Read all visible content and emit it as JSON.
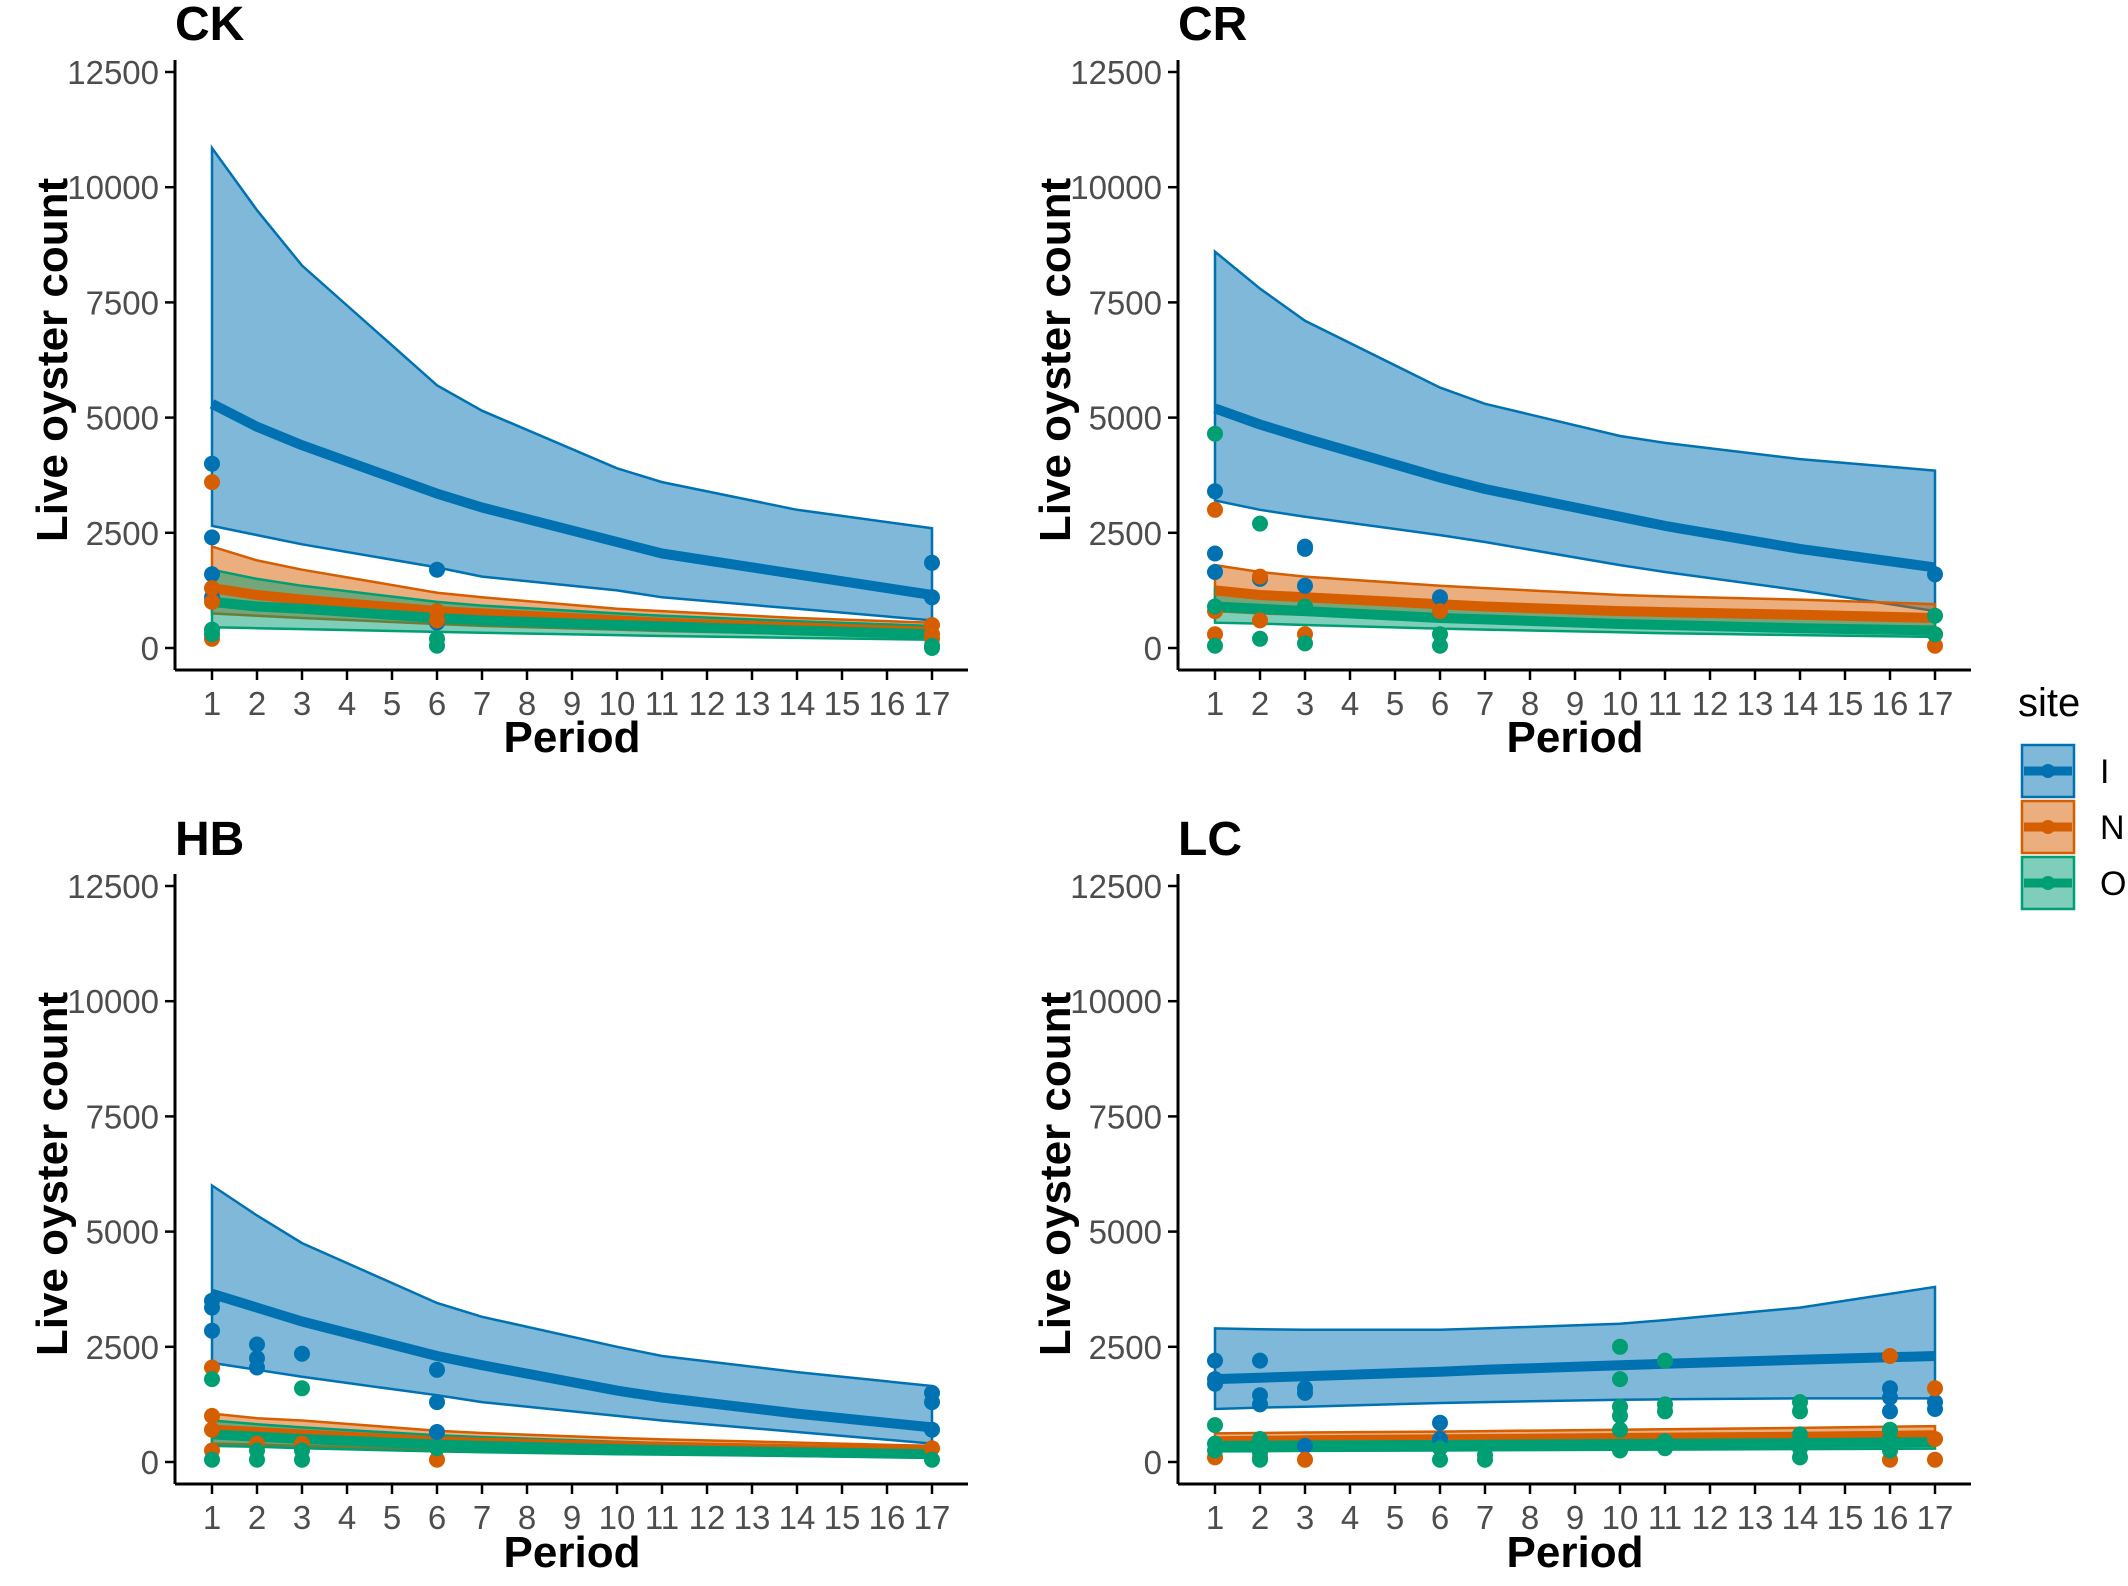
{
  "colors": {
    "I": "#0072B2",
    "N": "#D55E00",
    "O": "#009E73"
  },
  "legend": {
    "title": "site",
    "items": [
      "I",
      "N",
      "O"
    ]
  },
  "chart_data": [
    {
      "type": "line",
      "title": "CK",
      "xlabel": "Period",
      "ylabel": "Live oyster count",
      "x_ticks": [
        "1",
        "2",
        "3",
        "4",
        "5",
        "6",
        "7",
        "8",
        "9",
        "10",
        "11",
        "12",
        "13",
        "14",
        "15",
        "16",
        "17"
      ],
      "y_ticks": [
        "0",
        "2500",
        "5000",
        "7500",
        "10000",
        "12500"
      ],
      "xlim": [
        1,
        17
      ],
      "ylim": [
        0,
        12500
      ],
      "fit_x": [
        1,
        2,
        3,
        6,
        7,
        10,
        11,
        14,
        17
      ],
      "series": [
        {
          "name": "I",
          "fit": [
            5300,
            4800,
            4400,
            3350,
            3050,
            2300,
            2050,
            1600,
            1150
          ],
          "lower": [
            2650,
            2450,
            2250,
            1750,
            1550,
            1250,
            1100,
            850,
            600
          ],
          "upper": [
            10850,
            9500,
            8300,
            5700,
            5150,
            3900,
            3600,
            3000,
            2600
          ],
          "points": [
            [
              1,
              4000
            ],
            [
              1,
              2400
            ],
            [
              1,
              1600
            ],
            [
              1,
              1100
            ],
            [
              6,
              1700
            ],
            [
              6,
              550
            ],
            [
              17,
              1850
            ],
            [
              17,
              1100
            ]
          ]
        },
        {
          "name": "N",
          "fit": [
            1300,
            1150,
            1050,
            800,
            750,
            600,
            550,
            450,
            350
          ],
          "lower": [
            750,
            700,
            650,
            520,
            480,
            400,
            370,
            310,
            250
          ],
          "upper": [
            2200,
            1900,
            1700,
            1200,
            1100,
            850,
            800,
            650,
            550
          ],
          "points": [
            [
              1,
              3600
            ],
            [
              1,
              1300
            ],
            [
              1,
              1000
            ],
            [
              1,
              200
            ],
            [
              6,
              800
            ],
            [
              6,
              600
            ],
            [
              17,
              500
            ],
            [
              17,
              300
            ],
            [
              17,
              200
            ]
          ]
        },
        {
          "name": "O",
          "fit": [
            1000,
            900,
            850,
            650,
            600,
            500,
            470,
            380,
            300
          ],
          "lower": [
            450,
            430,
            410,
            350,
            330,
            280,
            260,
            220,
            180
          ],
          "upper": [
            1700,
            1500,
            1350,
            1000,
            920,
            750,
            700,
            580,
            480
          ],
          "points": [
            [
              1,
              400
            ],
            [
              1,
              300
            ],
            [
              6,
              200
            ],
            [
              6,
              50
            ],
            [
              17,
              50
            ],
            [
              17,
              0
            ]
          ]
        }
      ]
    },
    {
      "type": "line",
      "title": "CR",
      "xlabel": "Period",
      "ylabel": "Live oyster count",
      "x_ticks": [
        "1",
        "2",
        "3",
        "4",
        "5",
        "6",
        "7",
        "8",
        "9",
        "10",
        "11",
        "12",
        "13",
        "14",
        "15",
        "16",
        "17"
      ],
      "y_ticks": [
        "0",
        "2500",
        "5000",
        "7500",
        "10000",
        "12500"
      ],
      "xlim": [
        1,
        17
      ],
      "ylim": [
        0,
        12500
      ],
      "fit_x": [
        1,
        2,
        3,
        6,
        7,
        10,
        11,
        14,
        17
      ],
      "series": [
        {
          "name": "I",
          "fit": [
            5200,
            4850,
            4550,
            3700,
            3450,
            2850,
            2650,
            2150,
            1750
          ],
          "lower": [
            3200,
            3000,
            2850,
            2450,
            2300,
            1800,
            1650,
            1250,
            800
          ],
          "upper": [
            8600,
            7800,
            7100,
            5650,
            5300,
            4600,
            4450,
            4100,
            3850
          ],
          "points": [
            [
              1,
              3400
            ],
            [
              1,
              2050
            ],
            [
              1,
              1650
            ],
            [
              2,
              1500
            ],
            [
              3,
              2200
            ],
            [
              3,
              2150
            ],
            [
              3,
              1350
            ],
            [
              6,
              1100
            ],
            [
              17,
              1600
            ]
          ]
        },
        {
          "name": "N",
          "fit": [
            1250,
            1150,
            1100,
            950,
            900,
            800,
            780,
            720,
            650
          ],
          "lower": [
            800,
            750,
            720,
            650,
            620,
            560,
            540,
            500,
            450
          ],
          "upper": [
            1800,
            1650,
            1550,
            1350,
            1300,
            1150,
            1120,
            1050,
            950
          ],
          "points": [
            [
              1,
              3000
            ],
            [
              1,
              800
            ],
            [
              1,
              300
            ],
            [
              2,
              1550
            ],
            [
              2,
              600
            ],
            [
              3,
              300
            ],
            [
              6,
              800
            ],
            [
              17,
              300
            ],
            [
              17,
              50
            ]
          ]
        },
        {
          "name": "O",
          "fit": [
            900,
            850,
            800,
            650,
            620,
            520,
            500,
            430,
            380
          ],
          "lower": [
            550,
            530,
            500,
            420,
            400,
            340,
            320,
            280,
            240
          ],
          "upper": [
            1300,
            1200,
            1150,
            950,
            900,
            780,
            750,
            650,
            580
          ],
          "points": [
            [
              1,
              4650
            ],
            [
              1,
              900
            ],
            [
              1,
              50
            ],
            [
              2,
              2700
            ],
            [
              2,
              200
            ],
            [
              3,
              900
            ],
            [
              3,
              100
            ],
            [
              6,
              300
            ],
            [
              6,
              50
            ],
            [
              17,
              700
            ],
            [
              17,
              300
            ]
          ]
        }
      ]
    },
    {
      "type": "line",
      "title": "HB",
      "xlabel": "Period",
      "ylabel": "Live oyster count",
      "x_ticks": [
        "1",
        "2",
        "3",
        "4",
        "5",
        "6",
        "7",
        "8",
        "9",
        "10",
        "11",
        "12",
        "13",
        "14",
        "15",
        "16",
        "17"
      ],
      "y_ticks": [
        "0",
        "2500",
        "5000",
        "7500",
        "10000",
        "12500"
      ],
      "xlim": [
        1,
        17
      ],
      "ylim": [
        0,
        12500
      ],
      "fit_x": [
        1,
        2,
        3,
        6,
        7,
        10,
        11,
        14,
        17
      ],
      "series": [
        {
          "name": "I",
          "fit": [
            3650,
            3350,
            3050,
            2300,
            2100,
            1550,
            1400,
            1050,
            750
          ],
          "lower": [
            2150,
            2000,
            1850,
            1450,
            1300,
            1000,
            900,
            650,
            400
          ],
          "upper": [
            6000,
            5350,
            4750,
            3450,
            3150,
            2500,
            2300,
            1950,
            1650
          ],
          "points": [
            [
              1,
              3500
            ],
            [
              1,
              3350
            ],
            [
              1,
              2850
            ],
            [
              2,
              2550
            ],
            [
              2,
              2250
            ],
            [
              2,
              2050
            ],
            [
              3,
              2350
            ],
            [
              6,
              2000
            ],
            [
              6,
              1300
            ],
            [
              6,
              650
            ],
            [
              17,
              1500
            ],
            [
              17,
              1300
            ],
            [
              17,
              700
            ]
          ]
        },
        {
          "name": "N",
          "fit": [
            700,
            650,
            600,
            450,
            420,
            350,
            330,
            280,
            230
          ],
          "lower": [
            400,
            380,
            350,
            270,
            250,
            210,
            200,
            170,
            140
          ],
          "upper": [
            1050,
            950,
            900,
            680,
            630,
            520,
            490,
            420,
            350
          ],
          "points": [
            [
              1,
              2050
            ],
            [
              1,
              1000
            ],
            [
              1,
              700
            ],
            [
              1,
              250
            ],
            [
              2,
              400
            ],
            [
              3,
              400
            ],
            [
              6,
              50
            ],
            [
              17,
              300
            ]
          ]
        },
        {
          "name": "O",
          "fit": [
            600,
            550,
            500,
            380,
            350,
            280,
            260,
            210,
            170
          ],
          "lower": [
            350,
            330,
            300,
            230,
            210,
            170,
            160,
            130,
            100
          ],
          "upper": [
            900,
            820,
            750,
            580,
            540,
            440,
            410,
            340,
            280
          ],
          "points": [
            [
              1,
              1800
            ],
            [
              1,
              50
            ],
            [
              2,
              250
            ],
            [
              2,
              50
            ],
            [
              3,
              1600
            ],
            [
              3,
              250
            ],
            [
              3,
              50
            ],
            [
              6,
              300
            ],
            [
              17,
              50
            ]
          ]
        }
      ]
    },
    {
      "type": "line",
      "title": "LC",
      "xlabel": "Period",
      "ylabel": "Live oyster count",
      "x_ticks": [
        "1",
        "2",
        "3",
        "4",
        "5",
        "6",
        "7",
        "8",
        "9",
        "10",
        "11",
        "12",
        "13",
        "14",
        "15",
        "16",
        "17"
      ],
      "y_ticks": [
        "0",
        "2500",
        "5000",
        "7500",
        "10000",
        "12500"
      ],
      "xlim": [
        1,
        17
      ],
      "ylim": [
        0,
        12500
      ],
      "fit_x": [
        1,
        2,
        3,
        6,
        7,
        10,
        11,
        14,
        17
      ],
      "series": [
        {
          "name": "I",
          "fit": [
            1800,
            1830,
            1860,
            1960,
            2000,
            2100,
            2130,
            2220,
            2300
          ],
          "lower": [
            1150,
            1180,
            1200,
            1280,
            1300,
            1350,
            1360,
            1380,
            1380
          ],
          "upper": [
            2900,
            2880,
            2870,
            2870,
            2900,
            3000,
            3080,
            3350,
            3800
          ],
          "points": [
            [
              1,
              2200
            ],
            [
              1,
              1800
            ],
            [
              1,
              1700
            ],
            [
              2,
              2200
            ],
            [
              2,
              1450
            ],
            [
              2,
              1250
            ],
            [
              3,
              1600
            ],
            [
              3,
              1500
            ],
            [
              3,
              350
            ],
            [
              6,
              850
            ],
            [
              6,
              500
            ],
            [
              16,
              1600
            ],
            [
              16,
              1400
            ],
            [
              16,
              1100
            ],
            [
              17,
              1300
            ],
            [
              17,
              1150
            ]
          ]
        },
        {
          "name": "N",
          "fit": [
            450,
            460,
            470,
            490,
            500,
            520,
            530,
            550,
            580
          ],
          "lower": [
            320,
            330,
            335,
            350,
            355,
            370,
            375,
            390,
            400
          ],
          "upper": [
            620,
            630,
            640,
            660,
            670,
            700,
            710,
            740,
            780
          ],
          "points": [
            [
              1,
              100
            ],
            [
              2,
              100
            ],
            [
              3,
              50
            ],
            [
              16,
              2300
            ],
            [
              16,
              50
            ],
            [
              17,
              1600
            ],
            [
              17,
              500
            ],
            [
              17,
              50
            ]
          ]
        },
        {
          "name": "O",
          "fit": [
            350,
            355,
            360,
            370,
            375,
            390,
            395,
            410,
            430
          ],
          "lower": [
            230,
            235,
            240,
            250,
            255,
            265,
            270,
            280,
            290
          ],
          "upper": [
            500,
            505,
            510,
            520,
            525,
            540,
            545,
            560,
            580
          ],
          "points": [
            [
              1,
              800
            ],
            [
              1,
              400
            ],
            [
              1,
              250
            ],
            [
              2,
              500
            ],
            [
              2,
              350
            ],
            [
              2,
              200
            ],
            [
              2,
              50
            ],
            [
              6,
              300
            ],
            [
              6,
              50
            ],
            [
              7,
              150
            ],
            [
              7,
              50
            ],
            [
              10,
              2500
            ],
            [
              10,
              1800
            ],
            [
              10,
              1200
            ],
            [
              10,
              1000
            ],
            [
              10,
              700
            ],
            [
              10,
              250
            ],
            [
              11,
              2200
            ],
            [
              11,
              1250
            ],
            [
              11,
              1100
            ],
            [
              11,
              450
            ],
            [
              11,
              300
            ],
            [
              14,
              1300
            ],
            [
              14,
              1100
            ],
            [
              14,
              600
            ],
            [
              14,
              300
            ],
            [
              14,
              100
            ],
            [
              16,
              700
            ],
            [
              16,
              500
            ],
            [
              16,
              250
            ]
          ]
        }
      ]
    }
  ]
}
